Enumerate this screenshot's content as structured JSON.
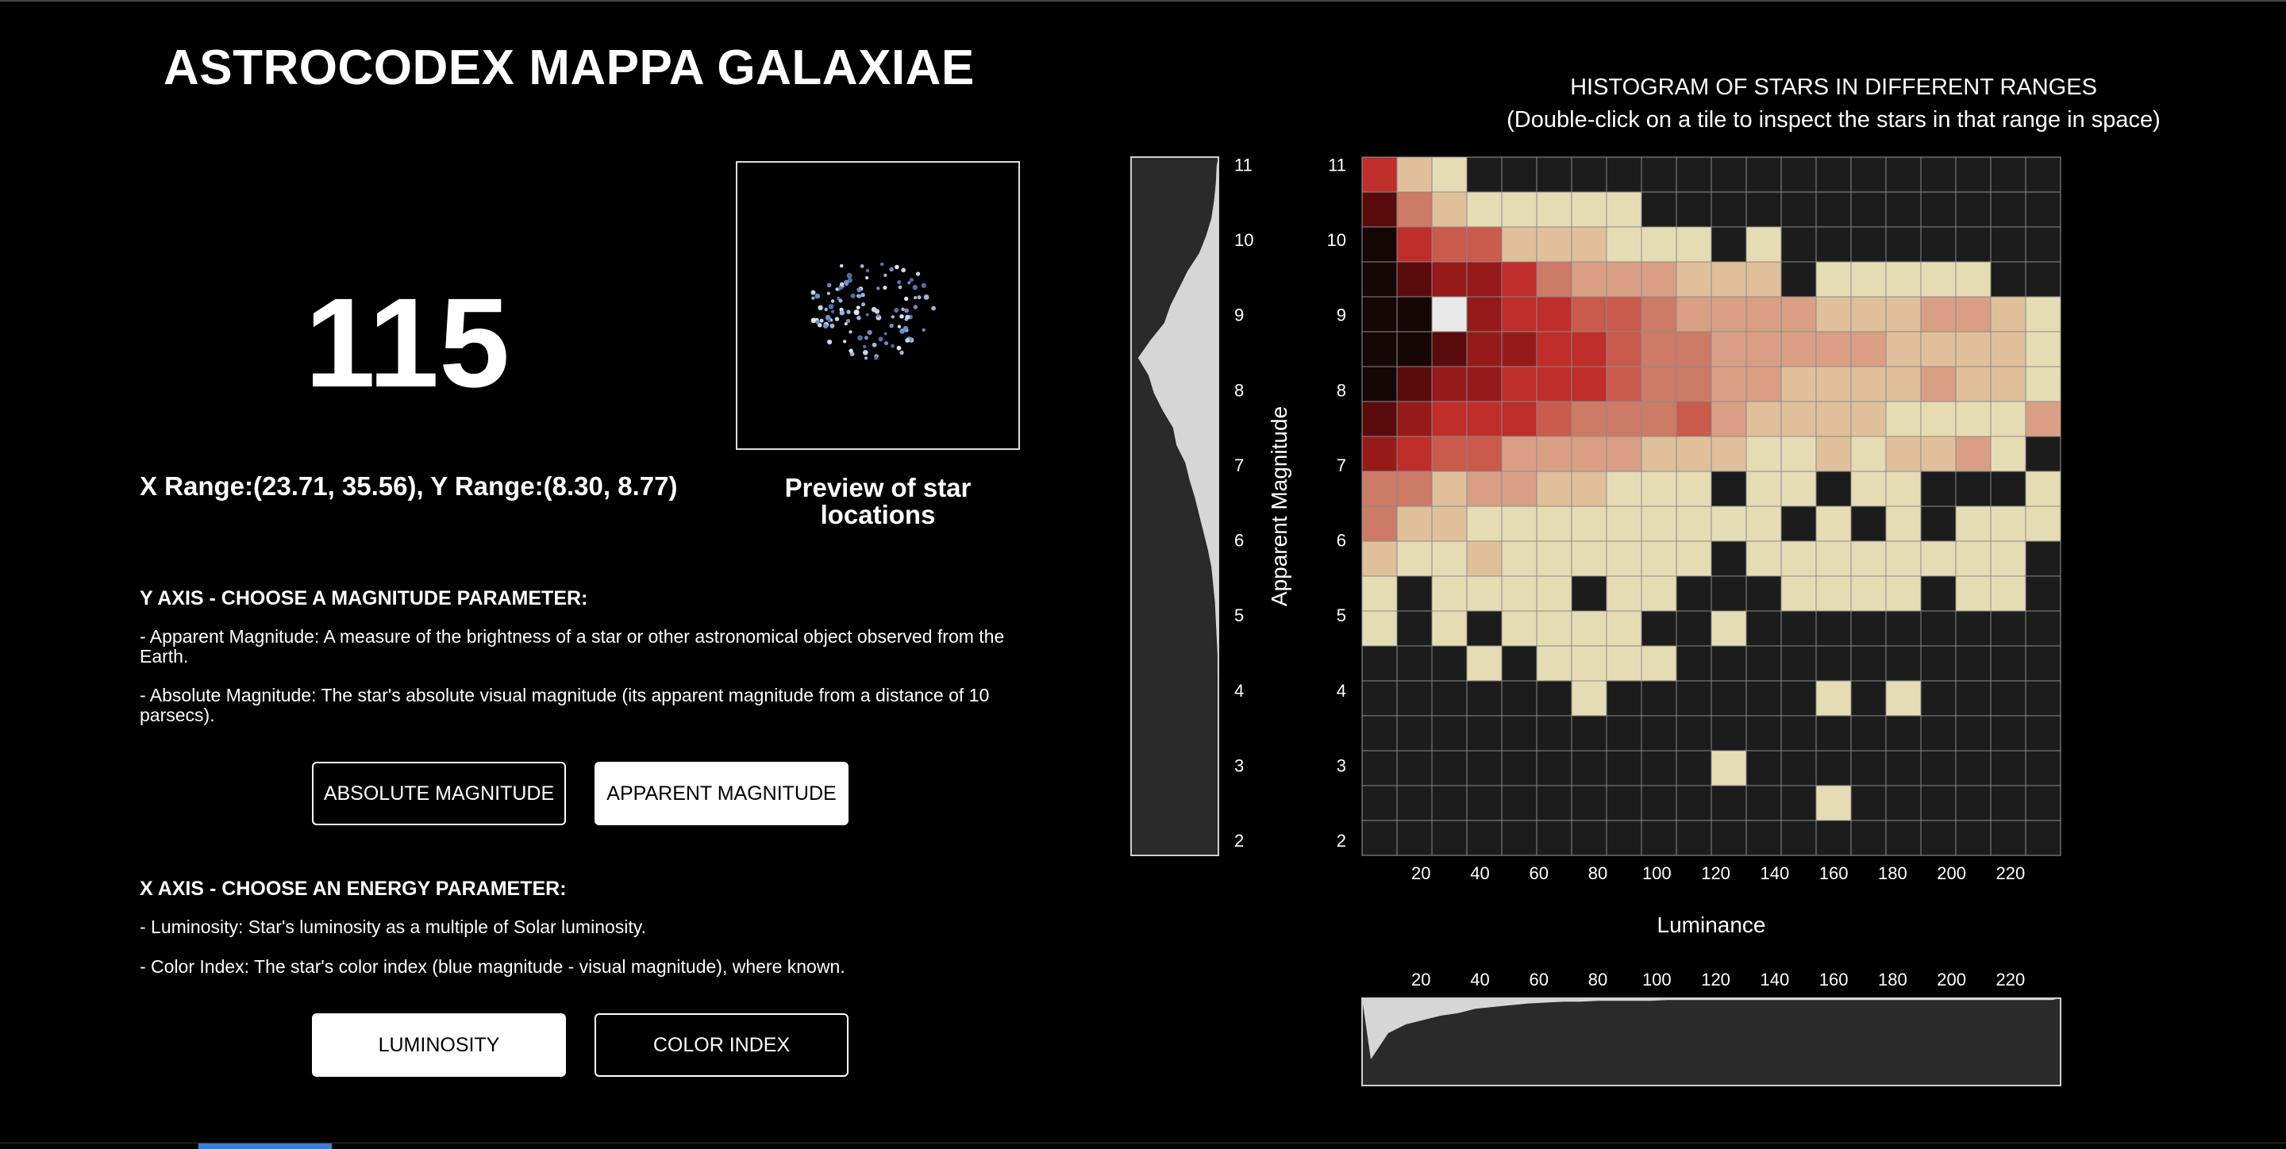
{
  "app": {
    "title": "ASTROCODEX MAPPA GALAXIAE"
  },
  "selection": {
    "count": "115",
    "range_text": "X Range:(23.71, 35.56), Y Range:(8.30, 8.77)",
    "preview_caption": "Preview of star locations"
  },
  "y_section": {
    "title": "Y AXIS - CHOOSE A MAGNITUDE PARAMETER:",
    "desc1": "- Apparent Magnitude: A measure of the brightness of a star or other astronomical object observed from the Earth.",
    "desc2": "- Absolute Magnitude: The star's absolute visual magnitude (its apparent magnitude from a distance of 10 parsecs).",
    "buttons": {
      "absolute": "ABSOLUTE MAGNITUDE",
      "apparent": "APPARENT MAGNITUDE"
    },
    "selected": "apparent"
  },
  "x_section": {
    "title": "X AXIS - CHOOSE AN ENERGY PARAMETER:",
    "desc1": "- Luminosity: Star's luminosity as a multiple of Solar luminosity.",
    "desc2": "- Color Index: The star's color index (blue magnitude - visual magnitude), where known.",
    "buttons": {
      "luminosity": "LUMINOSITY",
      "color_index": "COLOR INDEX"
    },
    "selected": "luminosity"
  },
  "histogram": {
    "title_line1": "HISTOGRAM OF STARS IN DIFFERENT RANGES",
    "title_line2": "(Double-click on a tile to inspect the stars in that range in space)"
  },
  "chart_data": {
    "type": "heatmap",
    "xlabel": "Luminance",
    "ylabel": "Apparent Magnitude",
    "xlim": [
      0,
      237
    ],
    "ylim": [
      1.8,
      11.1
    ],
    "x_ticks": [
      20,
      40,
      60,
      80,
      100,
      120,
      140,
      160,
      180,
      200,
      220
    ],
    "y_ticks": [
      2,
      3,
      4,
      5,
      6,
      7,
      8,
      9,
      10,
      11
    ],
    "columns": 20,
    "rows": 20,
    "row_order": "top_to_bottom",
    "selected_cell": {
      "row": 4,
      "col": 2
    },
    "grid": "0=empty, 1 (pale) .. 9 (darkest red)",
    "cells": [
      [
        6,
        2,
        1,
        0,
        0,
        0,
        0,
        0,
        0,
        0,
        0,
        0,
        0,
        0,
        0,
        0,
        0,
        0,
        0,
        0
      ],
      [
        8,
        4,
        2,
        1,
        1,
        1,
        1,
        1,
        0,
        0,
        0,
        0,
        0,
        0,
        0,
        0,
        0,
        0,
        0,
        0
      ],
      [
        9,
        6,
        5,
        5,
        2,
        2,
        2,
        1,
        1,
        1,
        0,
        1,
        0,
        0,
        0,
        0,
        0,
        0,
        0,
        0
      ],
      [
        9,
        8,
        7,
        7,
        6,
        4,
        3,
        3,
        3,
        2,
        2,
        2,
        0,
        1,
        1,
        1,
        1,
        1,
        0,
        0
      ],
      [
        9,
        9,
        1,
        7,
        6,
        6,
        5,
        5,
        4,
        3,
        3,
        3,
        3,
        2,
        2,
        2,
        3,
        3,
        2,
        1
      ],
      [
        9,
        9,
        8,
        7,
        7,
        6,
        6,
        5,
        4,
        4,
        3,
        3,
        3,
        3,
        3,
        2,
        2,
        2,
        2,
        1
      ],
      [
        9,
        8,
        7,
        7,
        6,
        6,
        6,
        5,
        4,
        4,
        3,
        3,
        2,
        2,
        2,
        2,
        3,
        2,
        2,
        1
      ],
      [
        8,
        7,
        6,
        6,
        6,
        5,
        4,
        4,
        4,
        5,
        3,
        2,
        2,
        2,
        2,
        1,
        1,
        1,
        1,
        3
      ],
      [
        7,
        6,
        5,
        5,
        3,
        3,
        3,
        3,
        2,
        2,
        2,
        1,
        1,
        2,
        1,
        2,
        2,
        3,
        1,
        0
      ],
      [
        4,
        4,
        2,
        3,
        3,
        2,
        2,
        1,
        1,
        1,
        0,
        1,
        1,
        0,
        1,
        1,
        0,
        0,
        0,
        1
      ],
      [
        4,
        2,
        2,
        1,
        1,
        1,
        1,
        1,
        1,
        1,
        1,
        1,
        0,
        1,
        0,
        1,
        0,
        1,
        1,
        1
      ],
      [
        2,
        1,
        1,
        2,
        1,
        1,
        1,
        1,
        1,
        1,
        0,
        1,
        1,
        1,
        1,
        1,
        1,
        1,
        1,
        0
      ],
      [
        1,
        0,
        1,
        1,
        1,
        1,
        0,
        1,
        1,
        0,
        0,
        0,
        1,
        1,
        1,
        1,
        0,
        1,
        1,
        0
      ],
      [
        1,
        0,
        1,
        0,
        1,
        1,
        1,
        1,
        0,
        0,
        1,
        0,
        0,
        0,
        0,
        0,
        0,
        0,
        0,
        0
      ],
      [
        0,
        0,
        0,
        1,
        0,
        1,
        1,
        1,
        1,
        0,
        0,
        0,
        0,
        0,
        0,
        0,
        0,
        0,
        0,
        0
      ],
      [
        0,
        0,
        0,
        0,
        0,
        0,
        1,
        0,
        0,
        0,
        0,
        0,
        0,
        1,
        0,
        1,
        0,
        0,
        0,
        0
      ],
      [
        0,
        0,
        0,
        0,
        0,
        0,
        0,
        0,
        0,
        0,
        0,
        0,
        0,
        0,
        0,
        0,
        0,
        0,
        0,
        0
      ],
      [
        0,
        0,
        0,
        0,
        0,
        0,
        0,
        0,
        0,
        0,
        1,
        0,
        0,
        0,
        0,
        0,
        0,
        0,
        0,
        0
      ],
      [
        0,
        0,
        0,
        0,
        0,
        0,
        0,
        0,
        0,
        0,
        0,
        0,
        0,
        1,
        0,
        0,
        0,
        0,
        0,
        0
      ],
      [
        0,
        0,
        0,
        0,
        0,
        0,
        0,
        0,
        0,
        0,
        0,
        0,
        0,
        0,
        0,
        0,
        0,
        0,
        0,
        0
      ]
    ],
    "y_marginal_profile": [
      0.02,
      0.03,
      0.05,
      0.08,
      0.14,
      0.22,
      0.35,
      0.45,
      0.55,
      0.62,
      0.78,
      0.92,
      0.8,
      0.74,
      0.64,
      0.52,
      0.48,
      0.38,
      0.33,
      0.27,
      0.22,
      0.17,
      0.12,
      0.08,
      0.06,
      0.04,
      0.03,
      0.02,
      0.01,
      0.01,
      0,
      0,
      0,
      0,
      0,
      0,
      0,
      0,
      0,
      0
    ],
    "x_marginal_profile": [
      0.7,
      0.4,
      0.3,
      0.25,
      0.2,
      0.17,
      0.12,
      0.1,
      0.08,
      0.06,
      0.05,
      0.04,
      0.04,
      0.03,
      0.03,
      0.03,
      0.03,
      0.02,
      0.02,
      0.02,
      0.02,
      0.02,
      0.02,
      0.02,
      0.02,
      0.02,
      0.02,
      0.02,
      0.02,
      0.02,
      0.02,
      0.02,
      0.02,
      0.02,
      0.02,
      0.02,
      0.02,
      0.02,
      0.02,
      0.02
    ]
  },
  "colors": {
    "empty": "#1c1c1c",
    "palette": [
      "#1c1c1c",
      "#e6dcb4",
      "#dfc09a",
      "#d99f84",
      "#cd7a66",
      "#c95a4c",
      "#bf2e2a",
      "#971a1a",
      "#5a0c0c",
      "#160606"
    ],
    "selected": "#e8e8e8",
    "accent": "#3b7fd4"
  }
}
